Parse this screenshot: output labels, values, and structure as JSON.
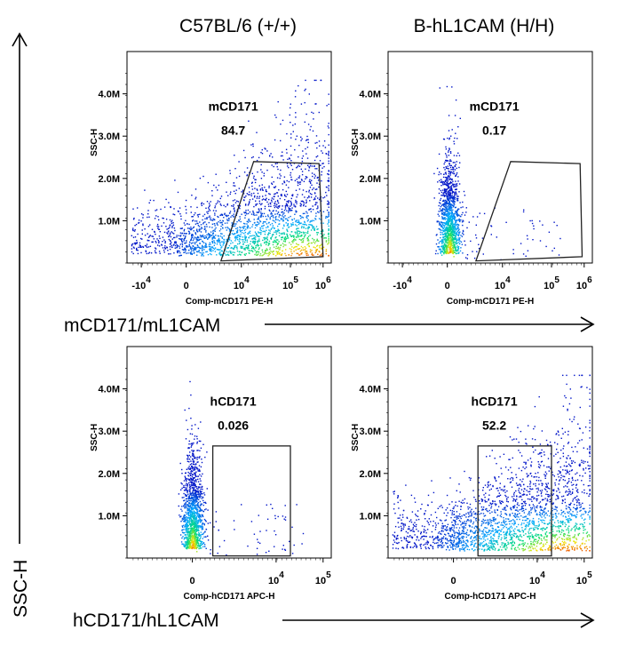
{
  "column_titles": [
    "C57BL/6 (+/+)",
    "B-hL1CAM (H/H)"
  ],
  "row_labels": [
    "mCD171/mL1CAM",
    "hCD171/hL1CAM"
  ],
  "y_axis_global": "SSC-H",
  "chart_data": [
    {
      "type": "scatter",
      "panel": "top-left",
      "xlabel": "Comp-mCD171 PE-H",
      "ylabel": "SSC-H",
      "x_ticks": [
        "-10^4",
        "0",
        "10^4",
        "10^5",
        "10^6"
      ],
      "y_ticks": [
        "1.0M",
        "2.0M",
        "3.0M",
        "4.0M"
      ],
      "gate": {
        "name": "mCD171",
        "value": "84.7"
      },
      "distribution": "broad-positive"
    },
    {
      "type": "scatter",
      "panel": "top-right",
      "xlabel": "Comp-mCD171 PE-H",
      "ylabel": "SSC-H",
      "x_ticks": [
        "-10^4",
        "0",
        "10^4",
        "10^5",
        "10^6"
      ],
      "y_ticks": [
        "1.0M",
        "2.0M",
        "3.0M",
        "4.0M"
      ],
      "gate": {
        "name": "mCD171",
        "value": "0.17"
      },
      "distribution": "negative-column"
    },
    {
      "type": "scatter",
      "panel": "bottom-left",
      "xlabel": "Comp-hCD171 APC-H",
      "ylabel": "SSC-H",
      "x_ticks": [
        "0",
        "10^4",
        "10^5"
      ],
      "y_ticks": [
        "1.0M",
        "2.0M",
        "3.0M",
        "4.0M"
      ],
      "gate": {
        "name": "hCD171",
        "value": "0.026"
      },
      "distribution": "negative-column"
    },
    {
      "type": "scatter",
      "panel": "bottom-right",
      "xlabel": "Comp-hCD171 APC-H",
      "ylabel": "SSC-H",
      "x_ticks": [
        "0",
        "10^4",
        "10^5"
      ],
      "y_ticks": [
        "1.0M",
        "2.0M",
        "3.0M",
        "4.0M"
      ],
      "gate": {
        "name": "hCD171",
        "value": "52.2"
      },
      "distribution": "broad-positive"
    }
  ]
}
